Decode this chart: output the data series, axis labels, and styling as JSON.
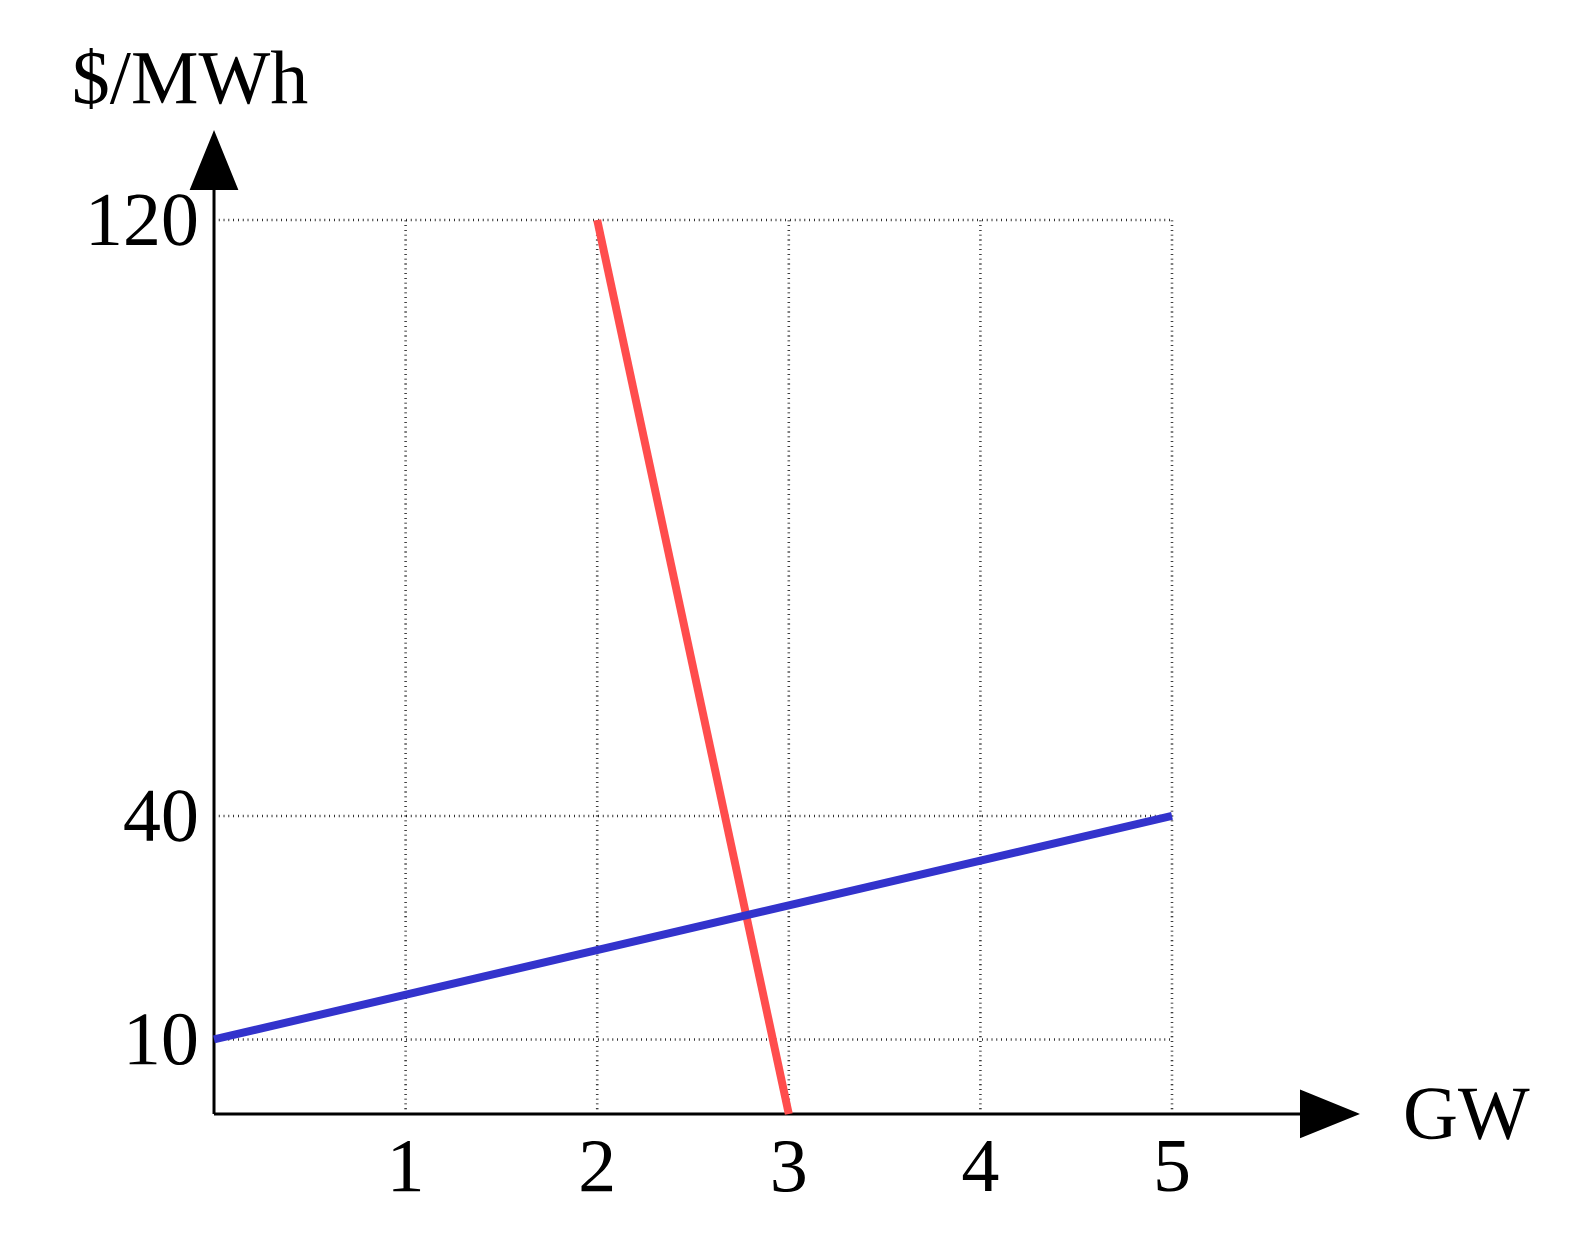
{
  "chart_data": {
    "type": "line",
    "xlabel": "GW",
    "ylabel": "$/MWh",
    "xlim": [
      0,
      5
    ],
    "ylim": [
      0,
      120
    ],
    "xticks": [
      1,
      2,
      3,
      4,
      5
    ],
    "yticks": [
      10,
      40,
      120
    ],
    "grid": true,
    "series": [
      {
        "color": "#ff4d4d",
        "x": [
          2,
          3
        ],
        "values": [
          120,
          0
        ]
      },
      {
        "color": "#3333cc",
        "x": [
          0,
          5
        ],
        "values": [
          10,
          40
        ]
      }
    ]
  }
}
